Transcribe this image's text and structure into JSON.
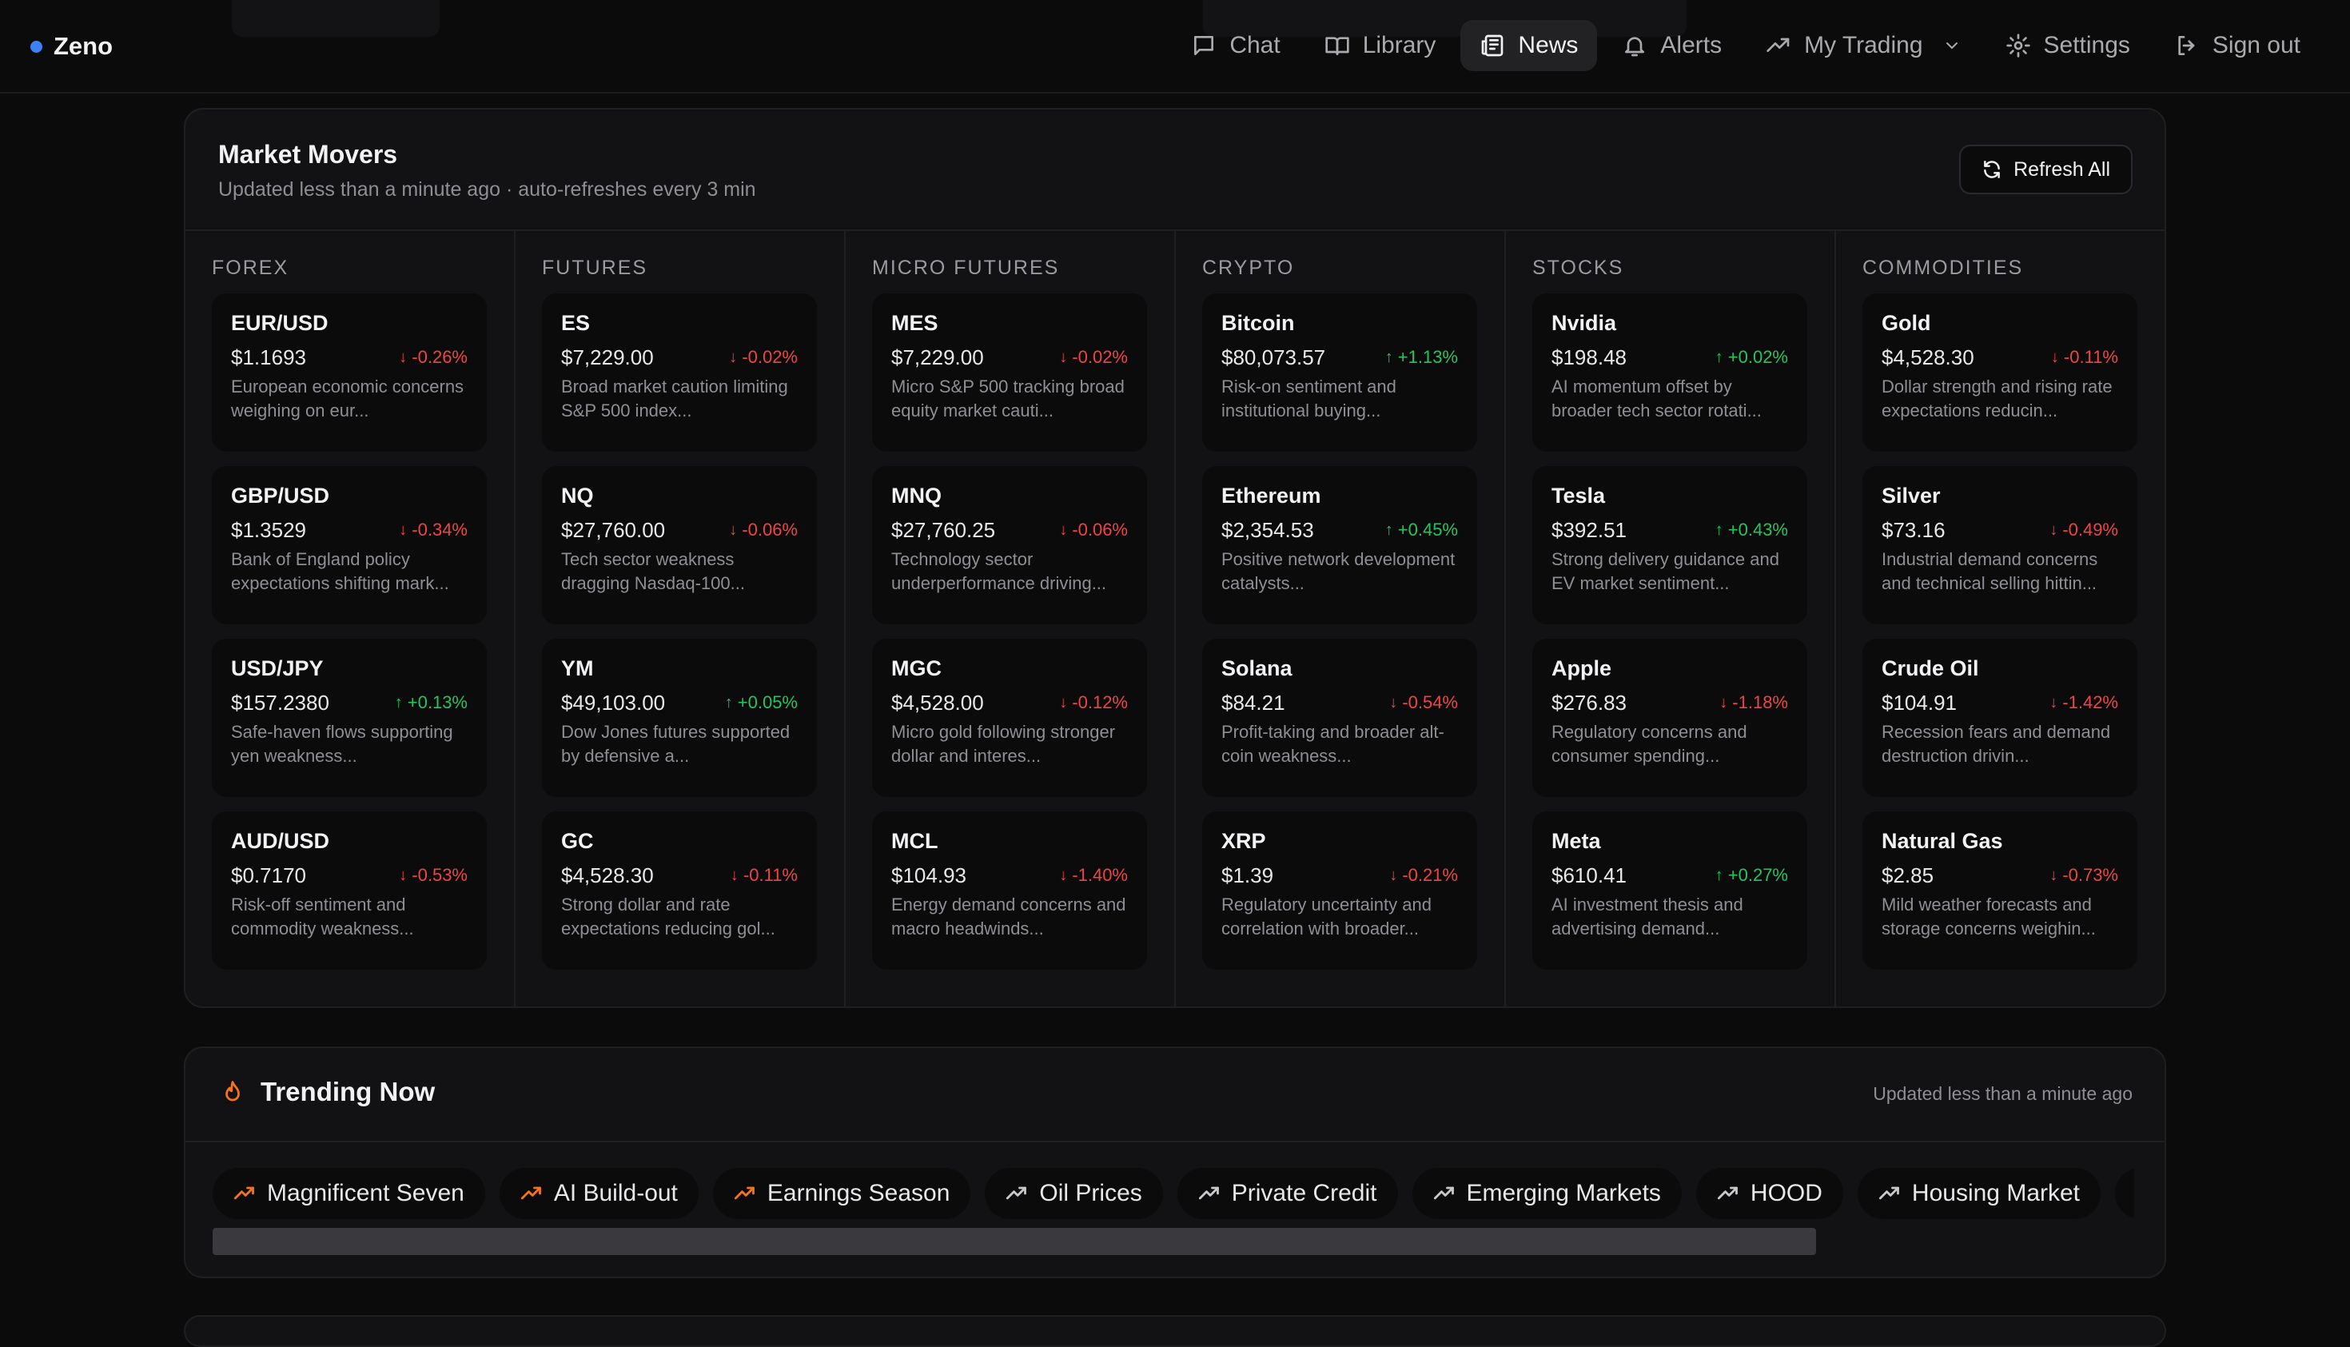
{
  "app": {
    "name": "Zeno",
    "brand_color": "#3b82f6"
  },
  "nav": {
    "items": [
      {
        "label": "Chat",
        "icon": "chat-icon",
        "active": false
      },
      {
        "label": "Library",
        "icon": "book-icon",
        "active": false
      },
      {
        "label": "News",
        "icon": "newspaper-icon",
        "active": true
      },
      {
        "label": "Alerts",
        "icon": "bell-icon",
        "active": false
      },
      {
        "label": "My Trading",
        "icon": "trending-up-icon",
        "active": false,
        "dropdown": true
      },
      {
        "label": "Settings",
        "icon": "gear-icon",
        "active": false
      },
      {
        "label": "Sign out",
        "icon": "sign-out-icon",
        "active": false
      }
    ]
  },
  "movers": {
    "title": "Market Movers",
    "subtitle": "Updated less than a minute ago · auto-refreshes every 3 min",
    "refresh_label": "Refresh All",
    "colors": {
      "down": "#ef4444",
      "up": "#22c55e"
    },
    "columns": [
      {
        "title": "FOREX",
        "assets": [
          {
            "name": "EUR/USD",
            "price": "$1.1693",
            "change": "-0.26%",
            "dir": "down",
            "desc": "European economic concerns weighing on eur..."
          },
          {
            "name": "GBP/USD",
            "price": "$1.3529",
            "change": "-0.34%",
            "dir": "down",
            "desc": "Bank of England policy expectations shifting mark..."
          },
          {
            "name": "USD/JPY",
            "price": "$157.2380",
            "change": "+0.13%",
            "dir": "up",
            "desc": "Safe-haven flows supporting yen weakness..."
          },
          {
            "name": "AUD/USD",
            "price": "$0.7170",
            "change": "-0.53%",
            "dir": "down",
            "desc": "Risk-off sentiment and commodity weakness..."
          }
        ]
      },
      {
        "title": "FUTURES",
        "assets": [
          {
            "name": "ES",
            "price": "$7,229.00",
            "change": "-0.02%",
            "dir": "down",
            "desc": "Broad market caution limiting S&P 500 index..."
          },
          {
            "name": "NQ",
            "price": "$27,760.00",
            "change": "-0.06%",
            "dir": "down",
            "desc": "Tech sector weakness dragging Nasdaq-100..."
          },
          {
            "name": "YM",
            "price": "$49,103.00",
            "change": "+0.05%",
            "dir": "up",
            "desc": "Dow Jones futures supported by defensive a..."
          },
          {
            "name": "GC",
            "price": "$4,528.30",
            "change": "-0.11%",
            "dir": "down",
            "desc": "Strong dollar and rate expectations reducing gol..."
          }
        ]
      },
      {
        "title": "MICRO FUTURES",
        "assets": [
          {
            "name": "MES",
            "price": "$7,229.00",
            "change": "-0.02%",
            "dir": "down",
            "desc": "Micro S&P 500 tracking broad equity market cauti..."
          },
          {
            "name": "MNQ",
            "price": "$27,760.25",
            "change": "-0.06%",
            "dir": "down",
            "desc": "Technology sector underperformance driving..."
          },
          {
            "name": "MGC",
            "price": "$4,528.00",
            "change": "-0.12%",
            "dir": "down",
            "desc": "Micro gold following stronger dollar and interes..."
          },
          {
            "name": "MCL",
            "price": "$104.93",
            "change": "-1.40%",
            "dir": "down",
            "desc": "Energy demand concerns and macro headwinds..."
          }
        ]
      },
      {
        "title": "CRYPTO",
        "assets": [
          {
            "name": "Bitcoin",
            "price": "$80,073.57",
            "change": "+1.13%",
            "dir": "up",
            "desc": "Risk-on sentiment and institutional buying..."
          },
          {
            "name": "Ethereum",
            "price": "$2,354.53",
            "change": "+0.45%",
            "dir": "up",
            "desc": "Positive network development catalysts..."
          },
          {
            "name": "Solana",
            "price": "$84.21",
            "change": "-0.54%",
            "dir": "down",
            "desc": "Profit-taking and broader alt-coin weakness..."
          },
          {
            "name": "XRP",
            "price": "$1.39",
            "change": "-0.21%",
            "dir": "down",
            "desc": "Regulatory uncertainty and correlation with broader..."
          }
        ]
      },
      {
        "title": "STOCKS",
        "assets": [
          {
            "name": "Nvidia",
            "price": "$198.48",
            "change": "+0.02%",
            "dir": "up",
            "desc": "AI momentum offset by broader tech sector rotati..."
          },
          {
            "name": "Tesla",
            "price": "$392.51",
            "change": "+0.43%",
            "dir": "up",
            "desc": "Strong delivery guidance and EV market sentiment..."
          },
          {
            "name": "Apple",
            "price": "$276.83",
            "change": "-1.18%",
            "dir": "down",
            "desc": "Regulatory concerns and consumer spending..."
          },
          {
            "name": "Meta",
            "price": "$610.41",
            "change": "+0.27%",
            "dir": "up",
            "desc": "AI investment thesis and advertising demand..."
          }
        ]
      },
      {
        "title": "COMMODITIES",
        "assets": [
          {
            "name": "Gold",
            "price": "$4,528.30",
            "change": "-0.11%",
            "dir": "down",
            "desc": "Dollar strength and rising rate expectations reducin..."
          },
          {
            "name": "Silver",
            "price": "$73.16",
            "change": "-0.49%",
            "dir": "down",
            "desc": "Industrial demand concerns and technical selling hittin..."
          },
          {
            "name": "Crude Oil",
            "price": "$104.91",
            "change": "-1.42%",
            "dir": "down",
            "desc": "Recession fears and demand destruction drivin..."
          },
          {
            "name": "Natural Gas",
            "price": "$2.85",
            "change": "-0.73%",
            "dir": "down",
            "desc": "Mild weather forecasts and storage concerns weighin..."
          }
        ]
      }
    ]
  },
  "trending": {
    "title": "Trending Now",
    "icon": "flame-icon",
    "updated": "Updated less than a minute ago",
    "chips": [
      {
        "label": "Magnificent Seven",
        "hot": true
      },
      {
        "label": "AI Build-out",
        "hot": true
      },
      {
        "label": "Earnings Season",
        "hot": true
      },
      {
        "label": "Oil Prices",
        "hot": false
      },
      {
        "label": "Private Credit",
        "hot": false
      },
      {
        "label": "Emerging Markets",
        "hot": false
      },
      {
        "label": "HOOD",
        "hot": false
      },
      {
        "label": "Housing Market",
        "hot": false
      },
      {
        "label": "",
        "hot": false
      }
    ]
  }
}
